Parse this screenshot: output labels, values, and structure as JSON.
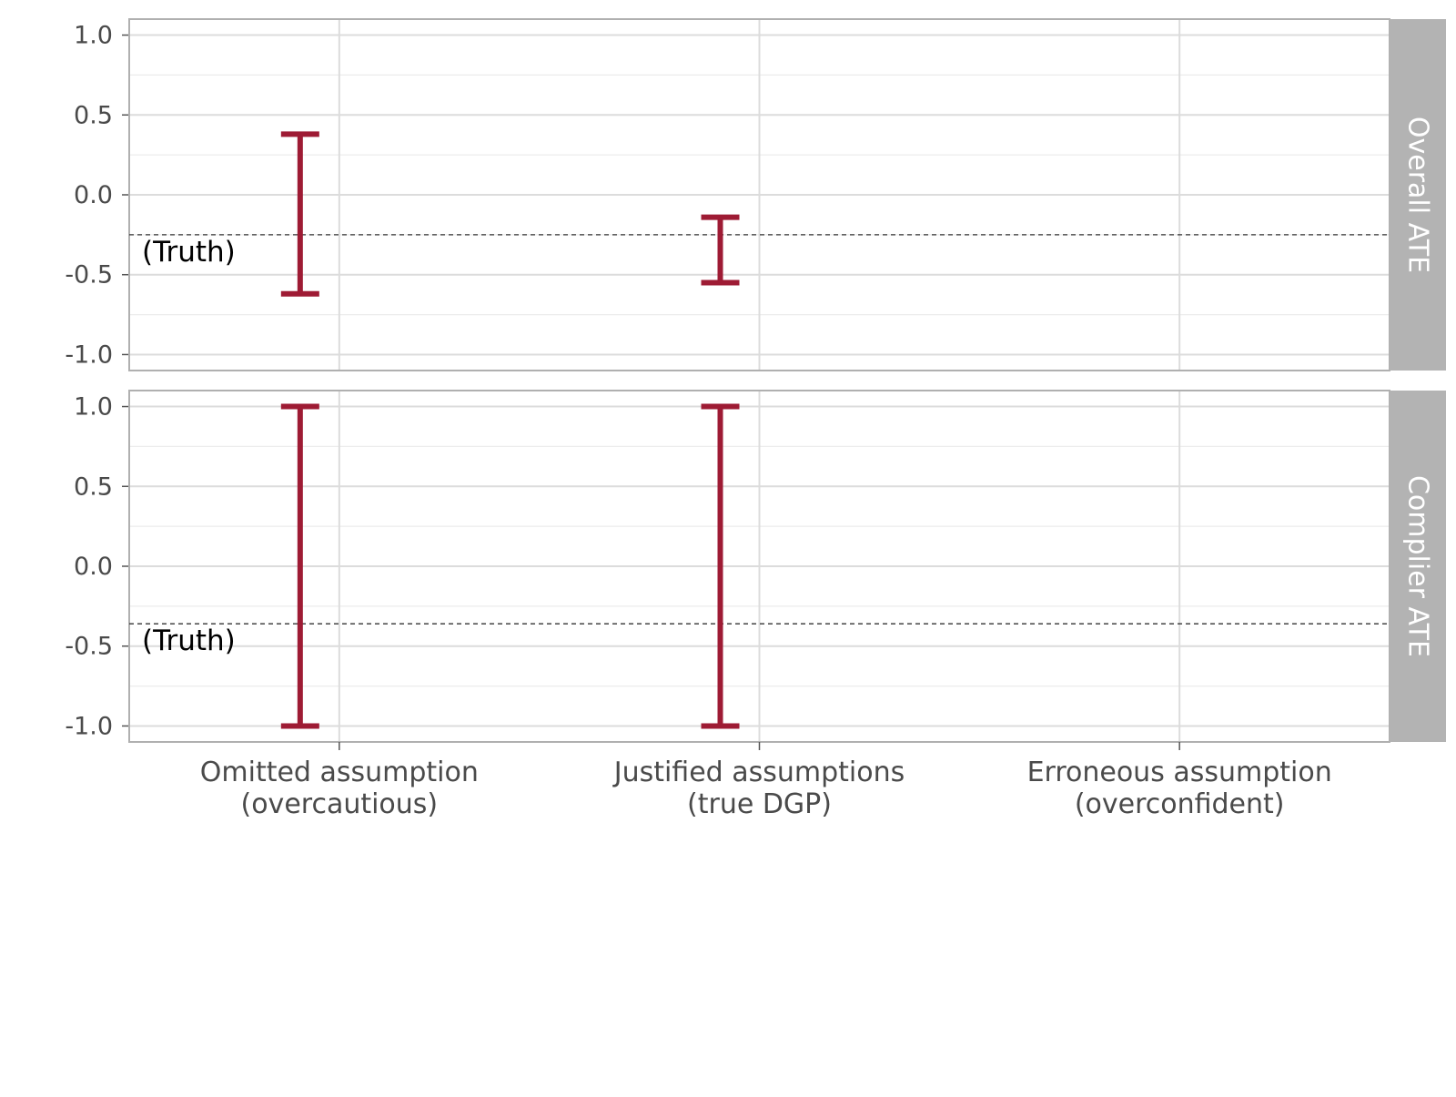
{
  "chart_data": {
    "type": "errorbar",
    "categories": [
      [
        "Omitted assumption",
        "(overcautious)"
      ],
      [
        "Justified assumptions",
        "(true DGP)"
      ],
      [
        "Erroneous assumption",
        "(overconfident)"
      ]
    ],
    "ylim": [
      -1.1,
      1.1
    ],
    "y_ticks": [
      -1.0,
      -0.5,
      0.0,
      0.5,
      1.0
    ],
    "y_tick_labels": [
      "-1.0",
      "-0.5",
      "0.0",
      "0.5",
      "1.0"
    ],
    "grid": true,
    "bar_color": "#9e1b34",
    "facets": [
      {
        "strip_label": "Overall ATE",
        "truth": -0.25,
        "truth_label": "(Truth)",
        "intervals": [
          {
            "category_index": 0,
            "low": -0.62,
            "high": 0.38
          },
          {
            "category_index": 1,
            "low": -0.55,
            "high": -0.14
          }
        ]
      },
      {
        "strip_label": "Complier ATE",
        "truth": -0.36,
        "truth_label": "(Truth)",
        "intervals": [
          {
            "category_index": 0,
            "low": -1.0,
            "high": 1.0
          },
          {
            "category_index": 1,
            "low": -1.0,
            "high": 1.0
          }
        ]
      }
    ]
  }
}
